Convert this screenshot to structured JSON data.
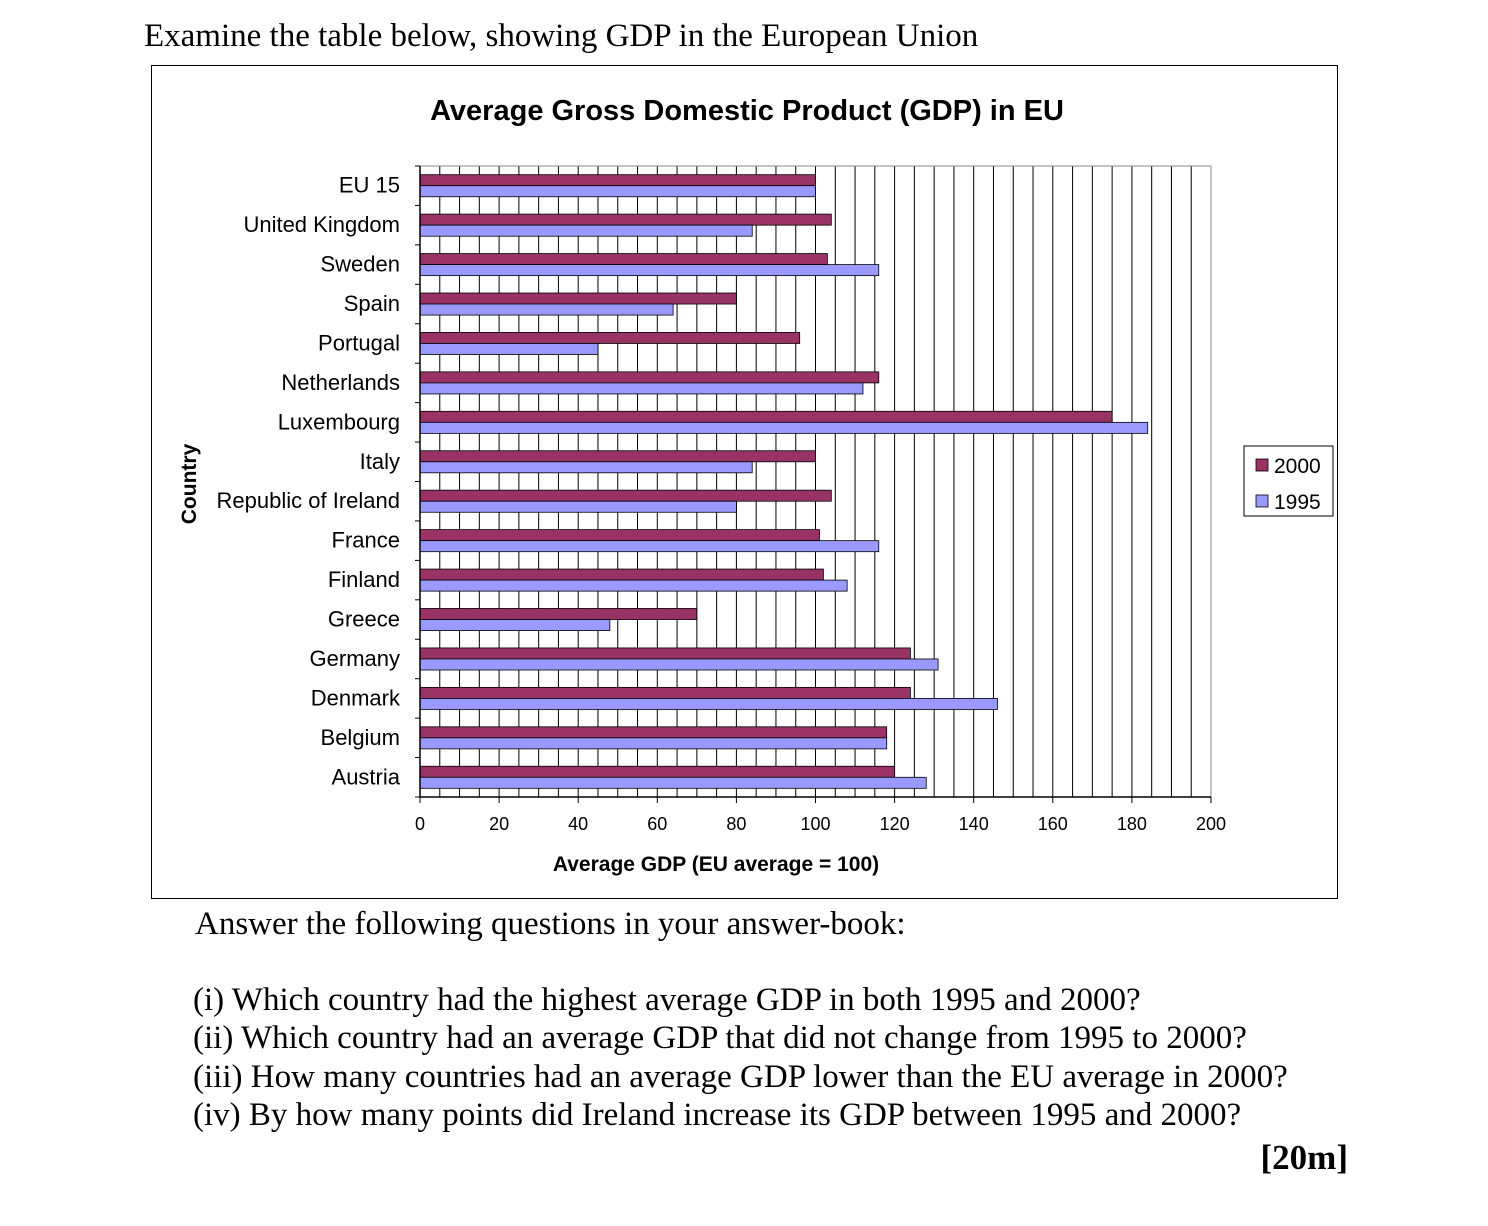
{
  "intro": "Examine the table below, showing GDP in the European Union",
  "answer_heading": "Answer the following questions in your answer-book:",
  "questions": [
    "(i)  Which country had the highest average GDP in both 1995 and 2000?",
    "(ii) Which country had an average GDP that did not change from 1995 to 2000?",
    "(iii) How many countries had an average GDP lower than the EU average in 2000?",
    "(iv) By how many points did Ireland increase its GDP between 1995 and 2000?"
  ],
  "marks": "[20m]",
  "chart_data": {
    "type": "bar",
    "orientation": "horizontal",
    "title": "Average Gross Domestic Product (GDP) in EU",
    "xlabel": "Average GDP (EU average = 100)",
    "ylabel": "Country",
    "xlim": [
      0,
      200
    ],
    "xticks": [
      0,
      20,
      40,
      60,
      80,
      100,
      120,
      140,
      160,
      180,
      200
    ],
    "minor_grid_step": 5,
    "grid": true,
    "legend_position": "right",
    "categories": [
      "EU 15",
      "United Kingdom",
      "Sweden",
      "Spain",
      "Portugal",
      "Netherlands",
      "Luxembourg",
      "Italy",
      "Republic of Ireland",
      "France",
      "Finland",
      "Greece",
      "Germany",
      "Denmark",
      "Belgium",
      "Austria"
    ],
    "series": [
      {
        "name": "2000",
        "color": "#993366",
        "values": [
          100,
          104,
          103,
          80,
          96,
          116,
          175,
          100,
          104,
          101,
          102,
          70,
          124,
          124,
          118,
          120
        ]
      },
      {
        "name": "1995",
        "color": "#9999ff",
        "values": [
          100,
          84,
          116,
          64,
          45,
          112,
          184,
          84,
          80,
          116,
          108,
          48,
          131,
          146,
          118,
          128
        ]
      }
    ]
  }
}
